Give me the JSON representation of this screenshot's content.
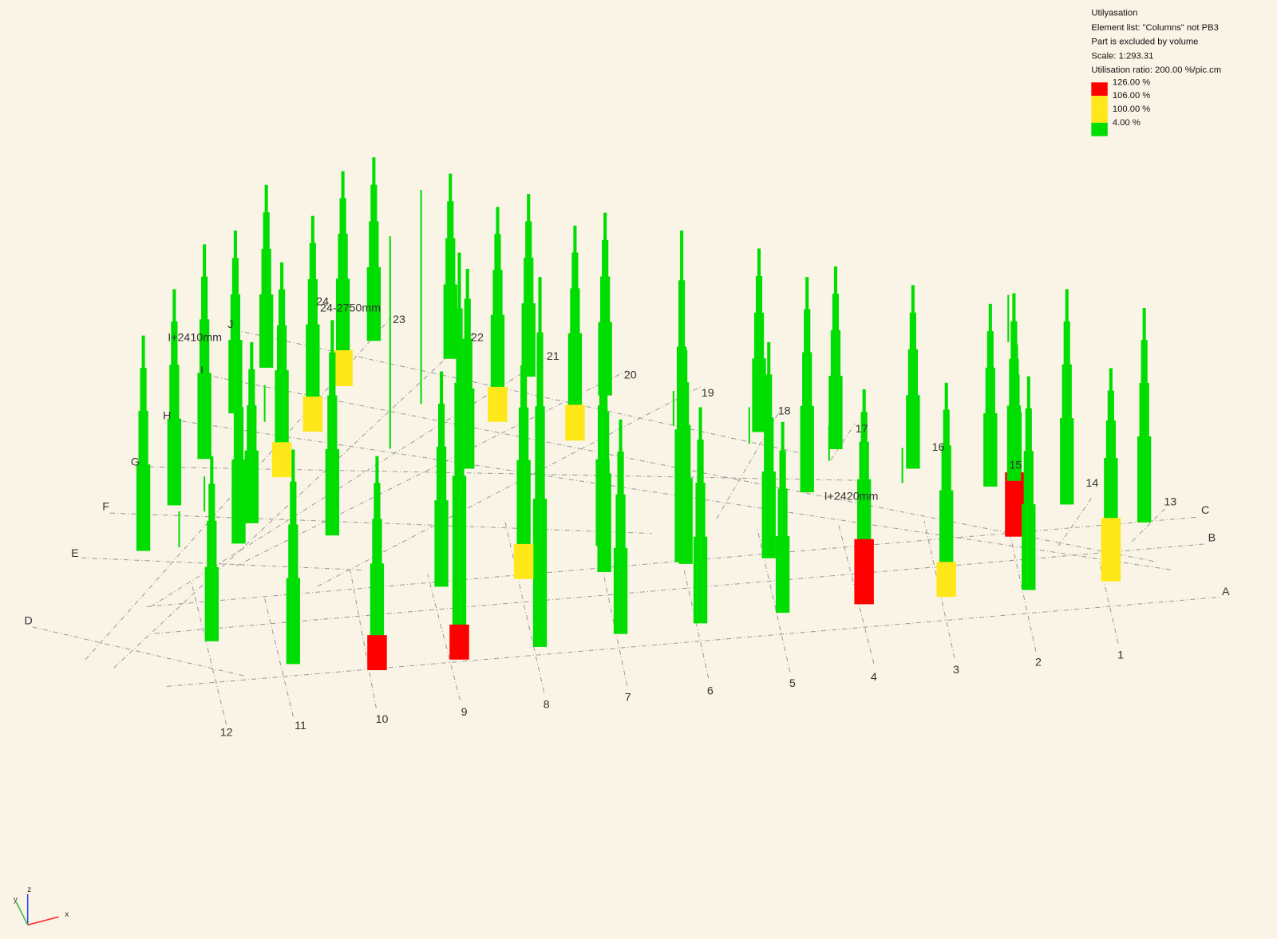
{
  "legend": {
    "title": "Utilyasation",
    "lines": [
      "Element list: \"Columns\" not PB3",
      "Part is excluded by volume",
      "Scale: 1:293.31",
      "Utilisation ratio: 200.00 %/pic.cm"
    ],
    "items": [
      {
        "label": "126.00 %",
        "color": "#ff0000"
      },
      {
        "label": "106.00 %",
        "color": "#ffe81a"
      },
      {
        "label": "100.00 %",
        "color": "#ffe81a"
      },
      {
        "label": "4.00 %",
        "color": "#00dd00"
      }
    ]
  },
  "grid": {
    "letters": [
      "A",
      "B",
      "C",
      "D",
      "E",
      "F",
      "G",
      "H",
      "I",
      "J"
    ],
    "numbers": [
      "1",
      "2",
      "3",
      "4",
      "5",
      "6",
      "7",
      "8",
      "9",
      "10",
      "11",
      "12",
      "13",
      "14",
      "15",
      "16",
      "17",
      "18",
      "19",
      "20",
      "21",
      "22",
      "23",
      "24"
    ]
  },
  "dimensions": [
    "I+2410mm",
    "24-2750mm",
    "I+2420mm"
  ],
  "axes": [
    "x",
    "y",
    "z"
  ]
}
